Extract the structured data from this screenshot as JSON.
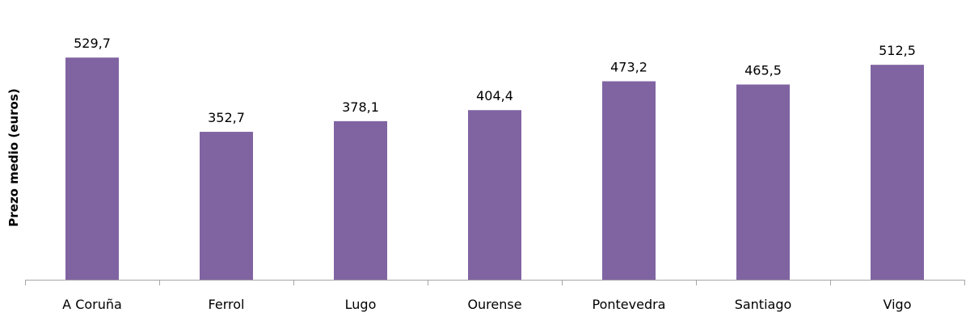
{
  "chart_data": {
    "type": "bar",
    "title": "",
    "xlabel": "",
    "ylabel": "Prezo medio (euros)",
    "categories": [
      "A Coruña",
      "Ferrol",
      "Lugo",
      "Ourense",
      "Pontevedra",
      "Santiago",
      "Vigo"
    ],
    "values": [
      529.7,
      352.7,
      378.1,
      404.4,
      473.2,
      465.5,
      512.5
    ],
    "data_labels": [
      "529,7",
      "352,7",
      "378,1",
      "404,4",
      "473,2",
      "465,5",
      "512,5"
    ],
    "ylim": [
      0,
      667
    ],
    "grid": false,
    "legend": "none",
    "colors": {
      "bar": "#8064A2",
      "axis": "#A6A6A6"
    }
  }
}
